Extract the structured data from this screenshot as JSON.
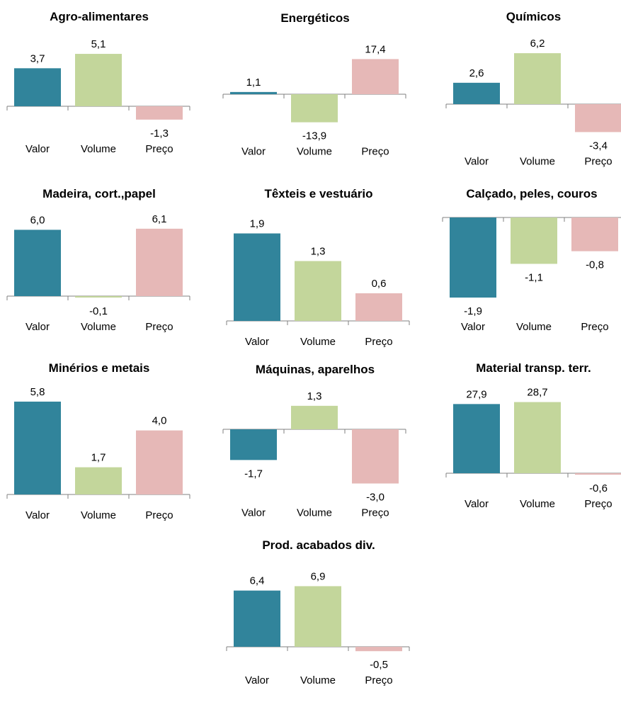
{
  "colors": {
    "valor": "#31849b",
    "volume": "#c3d69b",
    "preco": "#e6b8b7",
    "axis": "#808080"
  },
  "chart_data": [
    {
      "type": "bar",
      "title": "Agro-alimentares",
      "categories": [
        "Valor",
        "Volume",
        "Preço"
      ],
      "values": [
        "3,7",
        "5,1",
        "-1,3"
      ]
    },
    {
      "type": "bar",
      "title": "Energéticos",
      "categories": [
        "Valor",
        "Volume",
        "Preço"
      ],
      "values": [
        "1,1",
        "-13,9",
        "17,4"
      ]
    },
    {
      "type": "bar",
      "title": "Químicos",
      "categories": [
        "Valor",
        "Volume",
        "Preço"
      ],
      "values": [
        "2,6",
        "6,2",
        "-3,4"
      ]
    },
    {
      "type": "bar",
      "title": "Madeira, cort.,papel",
      "categories": [
        "Valor",
        "Volume",
        "Preço"
      ],
      "values": [
        "6,0",
        "-0,1",
        "6,1"
      ]
    },
    {
      "type": "bar",
      "title": "Têxteis e vestuário",
      "categories": [
        "Valor",
        "Volume",
        "Preço"
      ],
      "values": [
        "1,9",
        "1,3",
        "0,6"
      ]
    },
    {
      "type": "bar",
      "title": "Calçado, peles, couros",
      "categories": [
        "Valor",
        "Volume",
        "Preço"
      ],
      "values": [
        "-1,9",
        "-1,1",
        "-0,8"
      ]
    },
    {
      "type": "bar",
      "title": "Minérios e metais",
      "categories": [
        "Valor",
        "Volume",
        "Preço"
      ],
      "values": [
        "5,8",
        "1,7",
        "4,0"
      ]
    },
    {
      "type": "bar",
      "title": "Máquinas, aparelhos",
      "categories": [
        "Valor",
        "Volume",
        "Preço"
      ],
      "values": [
        "-1,7",
        "1,3",
        "-3,0"
      ]
    },
    {
      "type": "bar",
      "title": "Material transp. terr.",
      "categories": [
        "Valor",
        "Volume",
        "Preço"
      ],
      "values": [
        "27,9",
        "28,7",
        "-0,6"
      ]
    },
    {
      "type": "bar",
      "title": "Prod. acabados div.",
      "categories": [
        "Valor",
        "Volume",
        "Preço"
      ],
      "values": [
        "6,4",
        "6,9",
        "-0,5"
      ]
    }
  ]
}
